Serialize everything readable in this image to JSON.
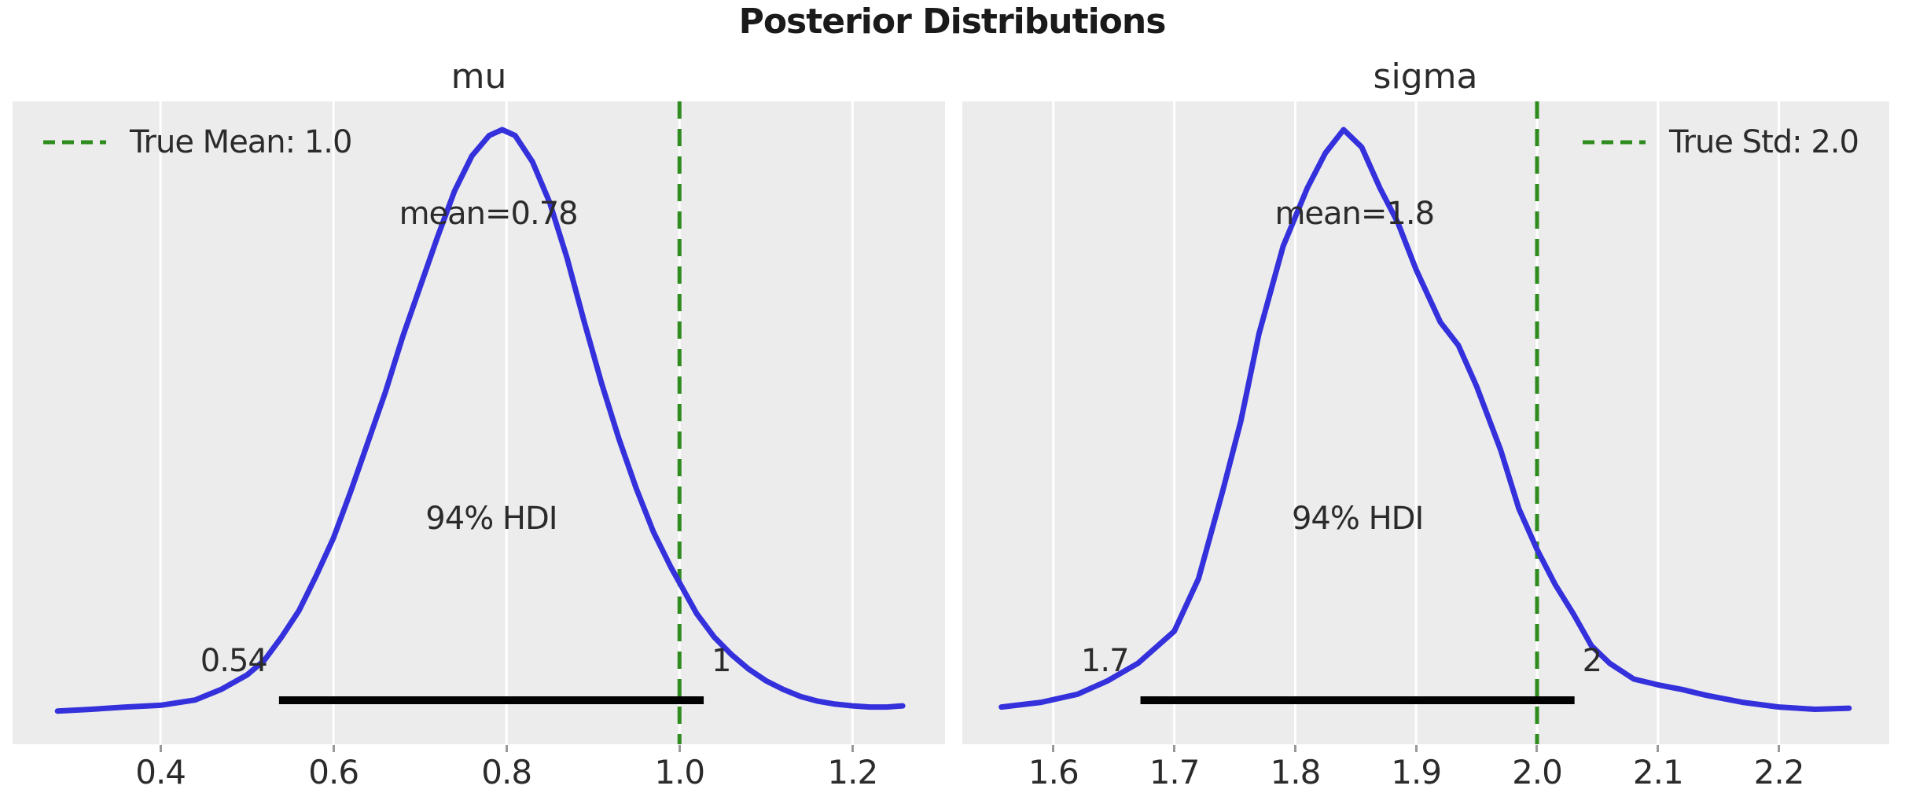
{
  "figure": {
    "title": "Posterior Distributions",
    "colors": {
      "background": "#ffffff",
      "panel_bg": "#ececec",
      "grid": "#ffffff",
      "curve": "#3431dc",
      "ref_line": "#2e8b1e",
      "hdi_bar": "#000000",
      "text": "#2b2b2b",
      "tick_mark": "#999999"
    }
  },
  "chart_data": [
    {
      "type": "line",
      "title": "mu",
      "xlabel": "",
      "ylabel": "",
      "xlim": [
        0.229,
        1.307
      ],
      "grid": true,
      "xticks": [
        0.4,
        0.6,
        0.8,
        1.0,
        1.2
      ],
      "xtick_labels": [
        "0.4",
        "0.6",
        "0.8",
        "1.0",
        "1.2"
      ],
      "mean": 0.78,
      "mean_label": "mean=0.78",
      "mean_pos": 0.779,
      "hdi": [
        0.537,
        1.028
      ],
      "hdi_label": "94% HDI",
      "hdi_lo_label": "0.54",
      "hdi_hi_label": "1",
      "ref_line": {
        "value": 1.0,
        "label": "True Mean: 1.0",
        "legend_side": "left"
      },
      "kde": {
        "x": [
          0.281,
          0.32,
          0.36,
          0.4,
          0.44,
          0.47,
          0.5,
          0.52,
          0.54,
          0.56,
          0.58,
          0.6,
          0.62,
          0.64,
          0.66,
          0.68,
          0.7,
          0.72,
          0.74,
          0.76,
          0.78,
          0.795,
          0.81,
          0.83,
          0.85,
          0.87,
          0.89,
          0.91,
          0.93,
          0.95,
          0.97,
          0.99,
          1.005,
          1.02,
          1.04,
          1.06,
          1.08,
          1.1,
          1.12,
          1.14,
          1.16,
          1.18,
          1.2,
          1.22,
          1.24,
          1.258
        ],
        "density": [
          0.003,
          0.006,
          0.01,
          0.013,
          0.022,
          0.04,
          0.065,
          0.09,
          0.13,
          0.175,
          0.235,
          0.3,
          0.38,
          0.465,
          0.55,
          0.645,
          0.73,
          0.815,
          0.895,
          0.955,
          0.99,
          1.0,
          0.99,
          0.945,
          0.875,
          0.78,
          0.67,
          0.565,
          0.47,
          0.385,
          0.31,
          0.25,
          0.21,
          0.17,
          0.13,
          0.1,
          0.075,
          0.055,
          0.04,
          0.028,
          0.02,
          0.015,
          0.012,
          0.01,
          0.01,
          0.012
        ]
      }
    },
    {
      "type": "line",
      "title": "sigma",
      "xlabel": "",
      "ylabel": "",
      "xlim": [
        1.5247,
        2.2913
      ],
      "grid": true,
      "xticks": [
        1.6,
        1.7,
        1.8,
        1.9,
        2.0,
        2.1,
        2.2
      ],
      "xtick_labels": [
        "1.6",
        "1.7",
        "1.8",
        "1.9",
        "2.0",
        "2.1",
        "2.2"
      ],
      "mean": 1.8,
      "mean_label": "mean=1.8",
      "mean_pos": 1.849,
      "hdi": [
        1.672,
        2.031
      ],
      "hdi_label": "94% HDI",
      "hdi_lo_label": "1.7",
      "hdi_hi_label": "2",
      "ref_line": {
        "value": 2.0,
        "label": "True Std: 2.0",
        "legend_side": "right"
      },
      "kde": {
        "x": [
          1.557,
          1.59,
          1.62,
          1.645,
          1.67,
          1.7,
          1.72,
          1.74,
          1.755,
          1.77,
          1.79,
          1.81,
          1.825,
          1.84,
          1.855,
          1.87,
          1.885,
          1.9,
          1.92,
          1.935,
          1.95,
          1.97,
          1.985,
          2.0,
          2.015,
          2.03,
          2.045,
          2.06,
          2.08,
          2.1,
          2.12,
          2.14,
          2.17,
          2.2,
          2.23,
          2.258
        ],
        "density": [
          0.01,
          0.018,
          0.032,
          0.055,
          0.085,
          0.14,
          0.23,
          0.38,
          0.5,
          0.65,
          0.8,
          0.9,
          0.96,
          1.0,
          0.97,
          0.9,
          0.84,
          0.76,
          0.67,
          0.63,
          0.56,
          0.45,
          0.35,
          0.28,
          0.22,
          0.17,
          0.115,
          0.085,
          0.058,
          0.048,
          0.04,
          0.03,
          0.018,
          0.01,
          0.006,
          0.008
        ]
      }
    }
  ]
}
